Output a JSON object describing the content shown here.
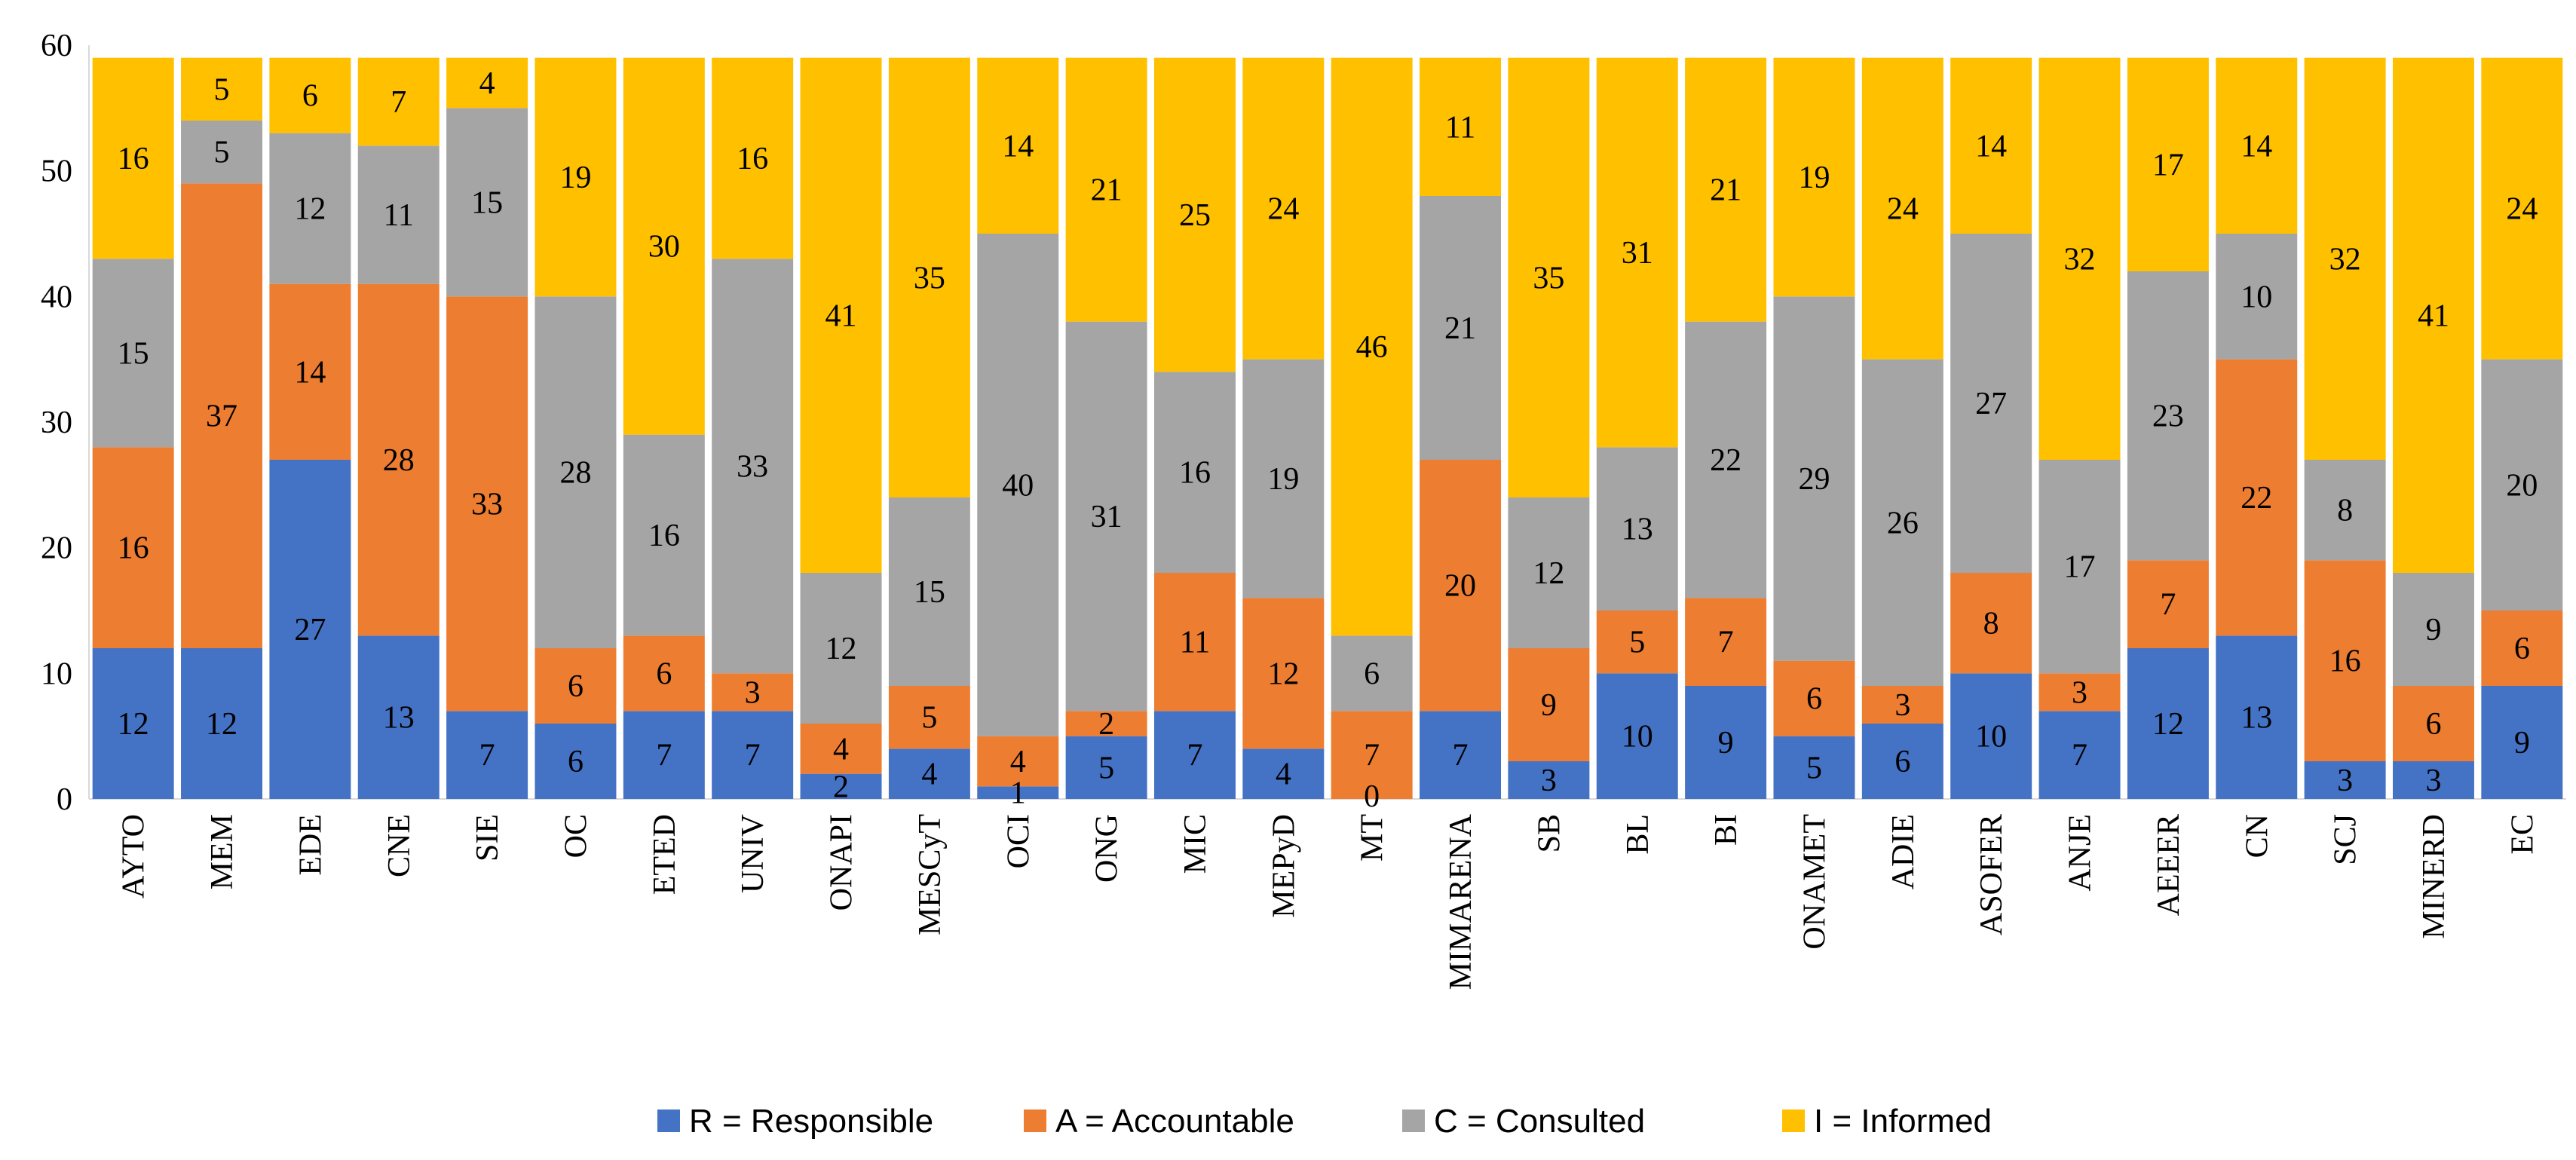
{
  "chart_data": {
    "type": "bar",
    "stacked": true,
    "title": "",
    "xlabel": "",
    "ylabel": "",
    "ylim": [
      0,
      60
    ],
    "yticks": [
      0,
      10,
      20,
      30,
      40,
      50,
      60
    ],
    "grid": false,
    "legend_position": "bottom",
    "categories": [
      "AYTO",
      "MEM",
      "EDE",
      "CNE",
      "SIE",
      "OC",
      "ETED",
      "UNIV",
      "ONAPI",
      "MESCyT",
      "OCI",
      "ONG",
      "MIC",
      "MEPyD",
      "MT",
      "MIMARENA",
      "SB",
      "BL",
      "BI",
      "ONAMET",
      "ADIE",
      "ASOFER",
      "ANJE",
      "AEEER",
      "CN",
      "SCJ",
      "MINERD",
      "EC"
    ],
    "series": [
      {
        "name": "R = Responsible",
        "color": "#4472C4",
        "values": [
          12,
          12,
          27,
          13,
          7,
          6,
          7,
          7,
          2,
          4,
          1,
          5,
          7,
          4,
          0,
          7,
          3,
          10,
          9,
          5,
          6,
          10,
          7,
          12,
          13,
          3,
          3,
          9
        ]
      },
      {
        "name": "A = Accountable",
        "color": "#ED7D31",
        "values": [
          16,
          37,
          14,
          28,
          33,
          6,
          6,
          3,
          4,
          5,
          4,
          2,
          11,
          12,
          7,
          20,
          9,
          5,
          7,
          6,
          3,
          8,
          3,
          7,
          22,
          16,
          6,
          6
        ]
      },
      {
        "name": "C = Consulted",
        "color": "#A5A5A5",
        "values": [
          15,
          5,
          12,
          11,
          15,
          28,
          16,
          33,
          12,
          15,
          40,
          31,
          16,
          19,
          6,
          21,
          12,
          13,
          22,
          29,
          26,
          27,
          17,
          23,
          10,
          8,
          9,
          20
        ]
      },
      {
        "name": "I = Informed",
        "color": "#FFC000",
        "values": [
          16,
          5,
          6,
          7,
          4,
          19,
          30,
          16,
          41,
          35,
          14,
          21,
          25,
          24,
          46,
          11,
          35,
          31,
          21,
          19,
          24,
          14,
          32,
          17,
          14,
          32,
          41,
          24
        ]
      }
    ]
  }
}
